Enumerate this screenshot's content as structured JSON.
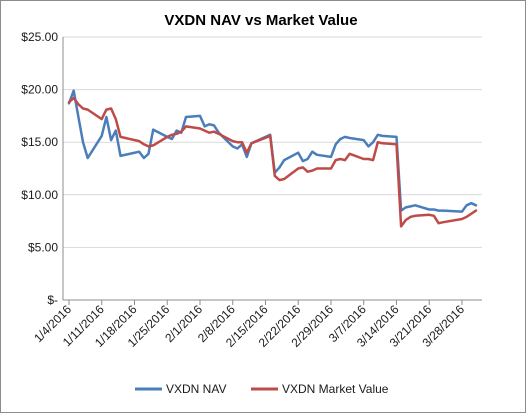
{
  "chart_data": {
    "type": "line",
    "title": "VXDN NAV vs Market Value",
    "xlabel": "",
    "ylabel": "",
    "ylim": [
      0,
      25
    ],
    "y_ticks": [
      {
        "value": 0,
        "label": "$-"
      },
      {
        "value": 5,
        "label": "$5.00"
      },
      {
        "value": 10,
        "label": "$10.00"
      },
      {
        "value": 15,
        "label": "$15.00"
      },
      {
        "value": 20,
        "label": "$20.00"
      },
      {
        "value": 25,
        "label": "$25.00"
      }
    ],
    "x_tick_labels": [
      "1/4/2016",
      "1/11/2016",
      "1/18/2016",
      "1/25/2016",
      "2/1/2016",
      "2/8/2016",
      "2/15/2016",
      "2/22/2016",
      "2/29/2016",
      "3/7/2016",
      "3/14/2016",
      "3/21/2016",
      "3/28/2016"
    ],
    "grid": true,
    "legend_position": "bottom",
    "colors": {
      "nav": "#4a7ebb",
      "market": "#be4b48",
      "grid": "#d9d9d9",
      "axis": "#8c8c8c"
    },
    "series": [
      {
        "name": "VXDN NAV",
        "x": [
          "1/4/2016",
          "1/5/2016",
          "1/6/2016",
          "1/7/2016",
          "1/8/2016",
          "1/11/2016",
          "1/12/2016",
          "1/13/2016",
          "1/14/2016",
          "1/15/2016",
          "1/19/2016",
          "1/20/2016",
          "1/21/2016",
          "1/22/2016",
          "1/25/2016",
          "1/26/2016",
          "1/27/2016",
          "1/28/2016",
          "1/29/2016",
          "2/1/2016",
          "2/2/2016",
          "2/3/2016",
          "2/4/2016",
          "2/5/2016",
          "2/8/2016",
          "2/9/2016",
          "2/10/2016",
          "2/11/2016",
          "2/12/2016",
          "2/16/2016",
          "2/17/2016",
          "2/18/2016",
          "2/19/2016",
          "2/22/2016",
          "2/23/2016",
          "2/24/2016",
          "2/25/2016",
          "2/26/2016",
          "2/29/2016",
          "3/1/2016",
          "3/2/2016",
          "3/3/2016",
          "3/4/2016",
          "3/7/2016",
          "3/8/2016",
          "3/9/2016",
          "3/10/2016",
          "3/11/2016",
          "3/14/2016",
          "3/15/2016",
          "3/16/2016",
          "3/17/2016",
          "3/18/2016",
          "3/21/2016",
          "3/22/2016",
          "3/23/2016",
          "3/24/2016",
          "3/28/2016",
          "3/29/2016",
          "3/30/2016",
          "3/31/2016"
        ],
        "values": [
          18.7,
          19.9,
          17.4,
          15.0,
          13.5,
          15.6,
          17.4,
          15.2,
          16.1,
          13.7,
          14.1,
          13.5,
          13.9,
          16.2,
          15.5,
          15.3,
          16.1,
          15.9,
          17.4,
          17.5,
          16.5,
          16.7,
          16.6,
          15.9,
          14.6,
          14.4,
          14.8,
          13.6,
          14.9,
          15.7,
          12.1,
          12.6,
          13.3,
          14.0,
          13.2,
          13.4,
          14.1,
          13.8,
          13.6,
          14.8,
          15.3,
          15.5,
          15.4,
          15.2,
          14.6,
          15.0,
          15.7,
          15.6,
          15.5,
          8.5,
          8.8,
          8.9,
          9.0,
          8.6,
          8.6,
          8.5,
          8.5,
          8.4,
          9.0,
          9.2,
          9.0
        ]
      },
      {
        "name": "VXDN Market Value",
        "x": [
          "1/4/2016",
          "1/5/2016",
          "1/6/2016",
          "1/7/2016",
          "1/8/2016",
          "1/11/2016",
          "1/12/2016",
          "1/13/2016",
          "1/14/2016",
          "1/15/2016",
          "1/19/2016",
          "1/20/2016",
          "1/21/2016",
          "1/22/2016",
          "1/25/2016",
          "1/26/2016",
          "1/27/2016",
          "1/28/2016",
          "1/29/2016",
          "2/1/2016",
          "2/2/2016",
          "2/3/2016",
          "2/4/2016",
          "2/5/2016",
          "2/8/2016",
          "2/9/2016",
          "2/10/2016",
          "2/11/2016",
          "2/12/2016",
          "2/16/2016",
          "2/17/2016",
          "2/18/2016",
          "2/19/2016",
          "2/22/2016",
          "2/23/2016",
          "2/24/2016",
          "2/25/2016",
          "2/26/2016",
          "2/29/2016",
          "3/1/2016",
          "3/2/2016",
          "3/3/2016",
          "3/4/2016",
          "3/7/2016",
          "3/8/2016",
          "3/9/2016",
          "3/10/2016",
          "3/11/2016",
          "3/14/2016",
          "3/15/2016",
          "3/16/2016",
          "3/17/2016",
          "3/18/2016",
          "3/21/2016",
          "3/22/2016",
          "3/23/2016",
          "3/24/2016",
          "3/28/2016",
          "3/29/2016",
          "3/30/2016",
          "3/31/2016"
        ],
        "values": [
          18.8,
          19.2,
          18.6,
          18.2,
          18.1,
          17.2,
          18.1,
          18.2,
          17.2,
          15.5,
          15.1,
          14.8,
          14.6,
          14.7,
          15.5,
          15.7,
          15.8,
          16.0,
          16.5,
          16.3,
          16.1,
          15.9,
          16.0,
          15.8,
          15.1,
          15.0,
          15.0,
          14.0,
          14.9,
          15.6,
          11.8,
          11.4,
          11.5,
          12.5,
          12.6,
          12.2,
          12.3,
          12.5,
          12.5,
          13.3,
          13.4,
          13.3,
          13.9,
          13.4,
          13.4,
          13.3,
          15.0,
          14.9,
          14.8,
          7.0,
          7.6,
          7.9,
          8.0,
          8.1,
          8.0,
          7.3,
          7.4,
          7.7,
          7.9,
          8.2,
          8.5
        ]
      }
    ]
  }
}
